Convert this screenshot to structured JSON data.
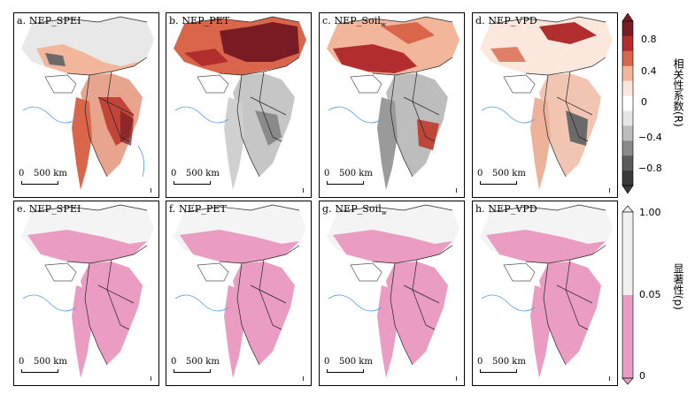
{
  "panels_top": [
    {
      "label": "a. NEP_SPEI"
    },
    {
      "label": "b. NEP_PET"
    },
    {
      "label": "c. NEP_Soil",
      "sub": "w"
    },
    {
      "label": "d. NEP_VPD"
    }
  ],
  "panels_bottom": [
    {
      "label": "e. NEP_SPEI"
    },
    {
      "label": "f. NEP_PET"
    },
    {
      "label": "g. NEP_Soil",
      "sub": "w"
    },
    {
      "label": "h. NEP_VPD"
    }
  ],
  "scalebar": {
    "zero": "0",
    "distance": "500 km"
  },
  "colorbar_r": {
    "title": "相关性系数(R)",
    "ticks": [
      "0.8",
      "0.4",
      "0",
      "−0.4",
      "−0.8"
    ],
    "colors": [
      "#7a1a22",
      "#b22e2e",
      "#d9654a",
      "#f2b79b",
      "#fbe7dc",
      "#ffffff",
      "#e6e6e6",
      "#bdbdbd",
      "#8a8a8a",
      "#5a5a5a",
      "#3a3a3a"
    ]
  },
  "colorbar_p": {
    "title": "显著性(p)",
    "ticks": [
      "1.00",
      "0.05",
      "0"
    ],
    "colors": [
      "#f0f0f0",
      "#ea9cc2"
    ]
  }
}
